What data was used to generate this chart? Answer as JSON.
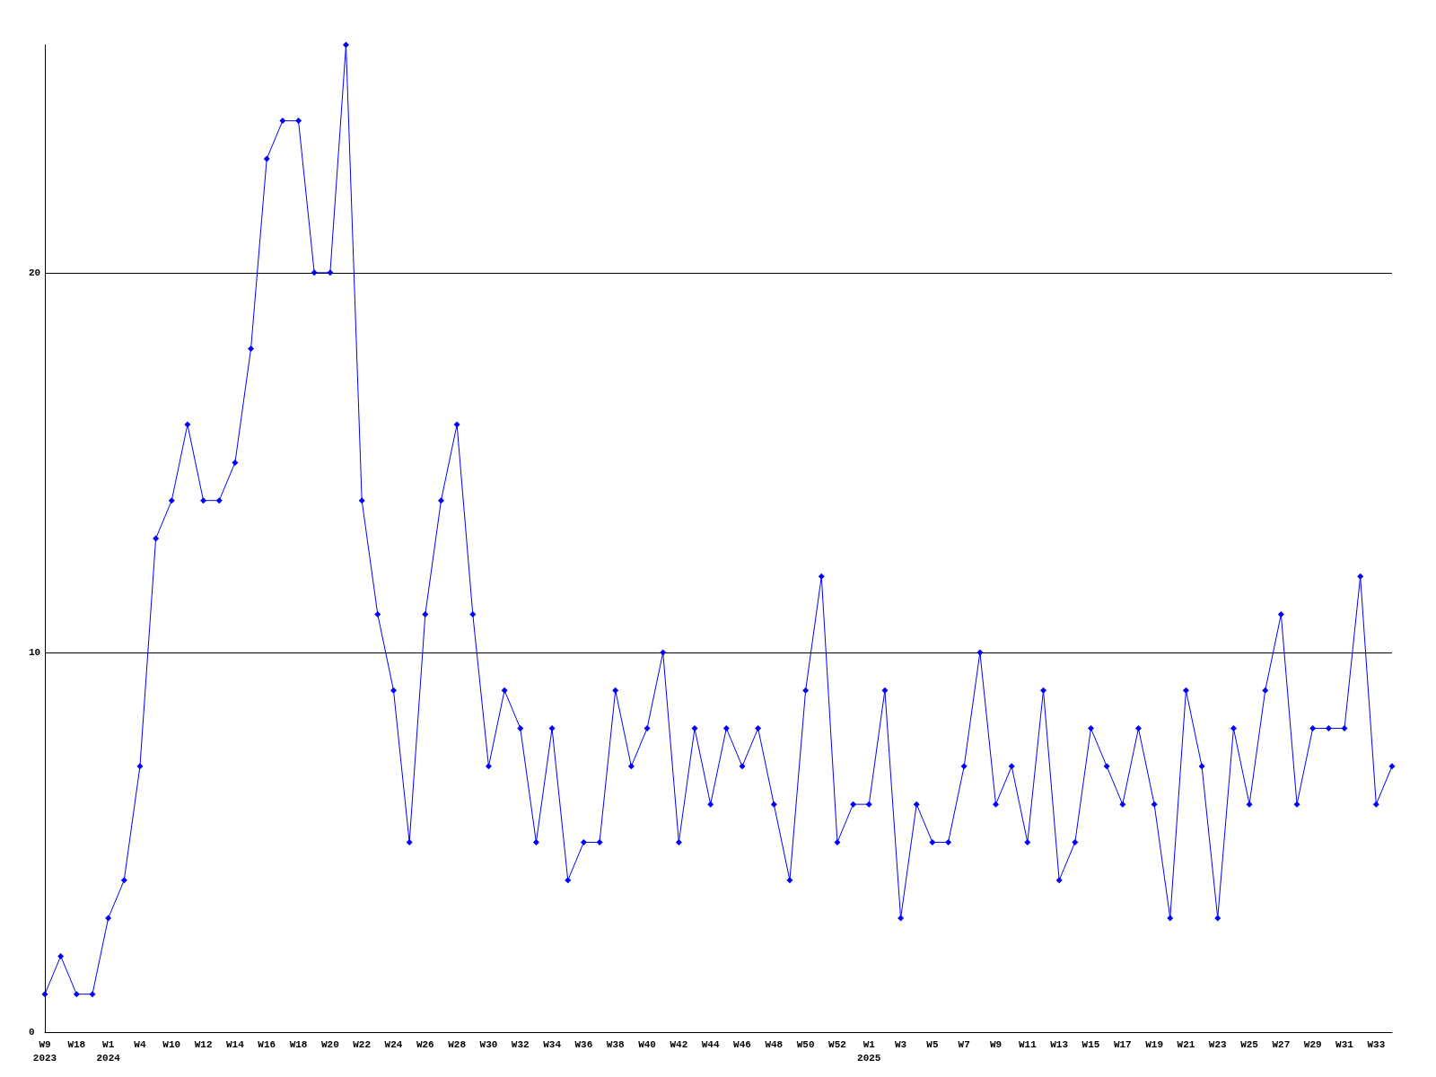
{
  "chart_data": {
    "type": "line",
    "categories": [
      "W9\n2023",
      null,
      "W18",
      null,
      "W1\n2024",
      null,
      "W4",
      null,
      "W10",
      null,
      "W12",
      null,
      "W14",
      null,
      "W16",
      null,
      "W18",
      null,
      "W20",
      null,
      "W22",
      null,
      "W24",
      null,
      "W26",
      null,
      "W28",
      null,
      "W30",
      null,
      "W32",
      null,
      "W34",
      null,
      "W36",
      null,
      "W38",
      null,
      "W40",
      null,
      "W42",
      null,
      "W44",
      null,
      "W46",
      null,
      "W48",
      null,
      "W50",
      null,
      "W52",
      null,
      "W1\n2025",
      null,
      "W3",
      null,
      "W5",
      null,
      "W7",
      null,
      "W9",
      null,
      "W11",
      null,
      "W13",
      null,
      "W15",
      null,
      "W17",
      null,
      "W19",
      null,
      "W21",
      null,
      "W23",
      null,
      "W25",
      null,
      "W27",
      null,
      "W29",
      null,
      "W31",
      null,
      "W33",
      null
    ],
    "series": [
      {
        "color": "#0000ff",
        "values": [
          1,
          2,
          1,
          1,
          3,
          4,
          7,
          13,
          14,
          16,
          14,
          14,
          15,
          18,
          23,
          24,
          24,
          20,
          20,
          26,
          14,
          11,
          9,
          5,
          11,
          14,
          16,
          11,
          7,
          9,
          8,
          5,
          8,
          4,
          5,
          5,
          9,
          7,
          8,
          10,
          5,
          8,
          6,
          8,
          7,
          8,
          6,
          4,
          9,
          12,
          5,
          6,
          6,
          9,
          3,
          6,
          5,
          5,
          7,
          10,
          6,
          7,
          5,
          9,
          4,
          5,
          8,
          7,
          6,
          8,
          6,
          3,
          9,
          7,
          3,
          8,
          6,
          9,
          11,
          6,
          8,
          8,
          8,
          12,
          6,
          7
        ]
      }
    ],
    "ylim": [
      0,
      26
    ],
    "yticks": [
      0,
      10,
      20
    ],
    "grid": "y",
    "marker": "diamond",
    "line_style": "solid"
  }
}
